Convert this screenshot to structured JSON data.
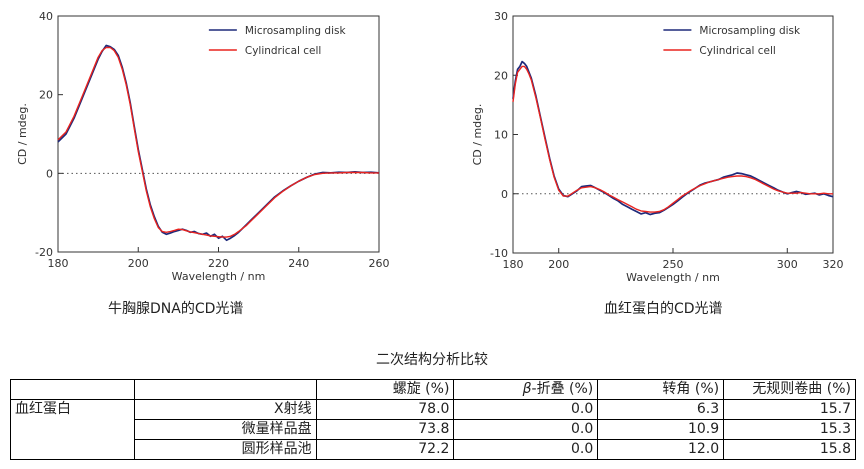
{
  "charts": {
    "dna": {
      "caption": "牛胸腺DNA的CD光谱",
      "legend": [
        "Microsampling disk",
        "Cylindrical cell"
      ]
    },
    "hemoglobin": {
      "caption": "血红蛋白的CD光谱",
      "legend": [
        "Microsampling disk",
        "Cylindrical cell"
      ]
    }
  },
  "colors": {
    "series1": "#1f2a7a",
    "series2": "#e8231f"
  },
  "table": {
    "title": "二次结构分析比较",
    "headers": [
      "",
      "",
      "螺旋 (%)",
      "β-折叠 (%)",
      "转角 (%)",
      "无规则卷曲 (%)"
    ],
    "header_beta_symbol": "β",
    "header_beta_rest": "-折叠 (%)",
    "sample": "血红蛋白",
    "rows": [
      {
        "method": "X射线",
        "values": [
          "78.0",
          "0.0",
          "6.3",
          "15.7"
        ]
      },
      {
        "method": "微量样品盘",
        "values": [
          "73.8",
          "0.0",
          "10.9",
          "15.3"
        ]
      },
      {
        "method": "圆形样品池",
        "values": [
          "72.2",
          "0.0",
          "12.0",
          "15.8"
        ]
      }
    ]
  },
  "chart_data": [
    {
      "type": "line",
      "title": "牛胸腺DNA的CD光谱",
      "xlabel": "Wavelength / nm",
      "ylabel": "CD / mdeg.",
      "xlim": [
        180,
        260
      ],
      "ylim": [
        -20,
        40
      ],
      "xticks": [
        180,
        200,
        220,
        240,
        260
      ],
      "yticks": [
        -20,
        0,
        20,
        40
      ],
      "legend_position": "top-right",
      "zero_line": "dotted",
      "series": [
        {
          "name": "Microsampling disk",
          "x": [
            180,
            182,
            184,
            186,
            188,
            190,
            191,
            192,
            193,
            194,
            195,
            196,
            197,
            198,
            199,
            200,
            201,
            202,
            203,
            204,
            205,
            206,
            207,
            208,
            209,
            210,
            211,
            212,
            213,
            214,
            215,
            216,
            217,
            218,
            219,
            220,
            221,
            222,
            223,
            224,
            225,
            226,
            227,
            228,
            230,
            232,
            234,
            236,
            238,
            240,
            242,
            244,
            246,
            248,
            250,
            252,
            254,
            256,
            258,
            260
          ],
          "y": [
            8,
            10,
            14,
            19,
            24,
            29,
            31,
            32.5,
            32.2,
            31.5,
            30,
            27,
            23,
            18,
            12,
            6,
            1,
            -4,
            -8,
            -11,
            -13.5,
            -15,
            -15.5,
            -15.2,
            -14.8,
            -14.5,
            -14.2,
            -14.5,
            -15,
            -14.8,
            -15.3,
            -15.5,
            -15.2,
            -16,
            -15.5,
            -16.5,
            -16,
            -17,
            -16.5,
            -15.8,
            -15,
            -14,
            -13,
            -12,
            -10,
            -8,
            -6,
            -4.5,
            -3.2,
            -2,
            -1,
            -0.2,
            0.2,
            0.1,
            0.3,
            0.2,
            0.4,
            0.2,
            0.3,
            0.1
          ]
        },
        {
          "name": "Cylindrical cell",
          "x": [
            180,
            182,
            184,
            186,
            188,
            190,
            191,
            192,
            193,
            194,
            195,
            196,
            197,
            198,
            199,
            200,
            201,
            202,
            203,
            204,
            205,
            206,
            207,
            208,
            209,
            210,
            211,
            212,
            213,
            214,
            215,
            216,
            217,
            218,
            219,
            220,
            221,
            222,
            223,
            224,
            225,
            226,
            227,
            228,
            230,
            232,
            234,
            236,
            238,
            240,
            242,
            244,
            246,
            248,
            250,
            252,
            254,
            256,
            258,
            260
          ],
          "y": [
            8.5,
            10.5,
            14.5,
            19.5,
            24.5,
            29.5,
            31.2,
            32,
            32,
            31.2,
            29.5,
            26.5,
            22.5,
            17.5,
            11.5,
            5.5,
            0.5,
            -4.5,
            -8.5,
            -11.5,
            -13.8,
            -14.8,
            -15,
            -14.8,
            -14.5,
            -14.2,
            -14.3,
            -14.6,
            -14.9,
            -15.1,
            -15.3,
            -15.5,
            -15.7,
            -15.9,
            -16,
            -16.1,
            -16.2,
            -16.2,
            -16,
            -15.5,
            -14.8,
            -14,
            -13.2,
            -12.2,
            -10.2,
            -8.2,
            -6.2,
            -4.6,
            -3.2,
            -2,
            -1,
            -0.3,
            0,
            0.1,
            0.1,
            0.2,
            0.2,
            0.2,
            0.1,
            0.1
          ]
        }
      ]
    },
    {
      "type": "line",
      "title": "血红蛋白的CD光谱",
      "xlabel": "Wavelength / nm",
      "ylabel": "CD / mdeg.",
      "xlim": [
        180,
        320
      ],
      "ylim": [
        -10,
        30
      ],
      "xticks": [
        180,
        200,
        250,
        300,
        320
      ],
      "yticks": [
        -10,
        0,
        10,
        20,
        30
      ],
      "legend_position": "top-right",
      "zero_line": "dotted",
      "series": [
        {
          "name": "Microsampling disk",
          "x": [
            180,
            181,
            182,
            183,
            184,
            185,
            186,
            187,
            188,
            190,
            192,
            194,
            196,
            198,
            200,
            202,
            204,
            206,
            208,
            210,
            212,
            214,
            216,
            218,
            220,
            222,
            224,
            226,
            228,
            230,
            232,
            234,
            236,
            238,
            240,
            242,
            244,
            246,
            248,
            250,
            252,
            254,
            256,
            258,
            260,
            262,
            264,
            266,
            268,
            270,
            272,
            274,
            276,
            278,
            280,
            282,
            284,
            286,
            288,
            290,
            292,
            294,
            296,
            298,
            300,
            302,
            304,
            306,
            308,
            310,
            312,
            314,
            316,
            318,
            320
          ],
          "y": [
            16,
            19,
            21,
            21.5,
            22.3,
            22,
            21.5,
            20.5,
            19.5,
            16.5,
            13,
            9.5,
            6,
            3,
            0.8,
            -0.3,
            -0.5,
            0,
            0.5,
            1.2,
            1.3,
            1.4,
            1,
            0.6,
            0.2,
            -0.3,
            -0.8,
            -1.2,
            -1.8,
            -2.2,
            -2.6,
            -3,
            -3.4,
            -3.2,
            -3.5,
            -3.3,
            -3.2,
            -2.8,
            -2.3,
            -1.8,
            -1.2,
            -0.6,
            0,
            0.5,
            1,
            1.5,
            1.8,
            2,
            2.2,
            2.4,
            2.8,
            3,
            3.2,
            3.5,
            3.4,
            3.2,
            3,
            2.6,
            2.2,
            1.8,
            1.4,
            1,
            0.6,
            0.3,
            0,
            0.2,
            0.4,
            0.2,
            -0.1,
            0,
            0.1,
            -0.2,
            0,
            -0.3,
            -0.5
          ]
        },
        {
          "name": "Cylindrical cell",
          "x": [
            180,
            181,
            182,
            183,
            184,
            185,
            186,
            187,
            188,
            190,
            192,
            194,
            196,
            198,
            200,
            202,
            204,
            206,
            208,
            210,
            212,
            214,
            216,
            218,
            220,
            222,
            224,
            226,
            228,
            230,
            232,
            234,
            236,
            238,
            240,
            242,
            244,
            246,
            248,
            250,
            252,
            254,
            256,
            258,
            260,
            262,
            264,
            266,
            268,
            270,
            272,
            274,
            276,
            278,
            280,
            282,
            284,
            286,
            288,
            290,
            292,
            294,
            296,
            298,
            300,
            302,
            304,
            306,
            308,
            310,
            312,
            314,
            316,
            318,
            320
          ],
          "y": [
            15.5,
            18.5,
            20.5,
            21,
            21.5,
            21.5,
            21,
            20.2,
            19.2,
            16.2,
            12.8,
            9.2,
            5.8,
            2.8,
            0.6,
            -0.4,
            -0.4,
            0.1,
            0.6,
            1,
            1.1,
            1.2,
            1,
            0.7,
            0.3,
            -0.2,
            -0.6,
            -1,
            -1.4,
            -1.8,
            -2.2,
            -2.6,
            -2.9,
            -3,
            -3.1,
            -3.1,
            -3,
            -2.7,
            -2.2,
            -1.6,
            -1,
            -0.4,
            0.1,
            0.6,
            1,
            1.4,
            1.7,
            2,
            2.2,
            2.4,
            2.6,
            2.8,
            2.9,
            3,
            3,
            2.9,
            2.7,
            2.4,
            2,
            1.6,
            1.2,
            0.8,
            0.5,
            0.3,
            0.1,
            0.1,
            0.1,
            0.2,
            0.1,
            0,
            0,
            0,
            0.1,
            0,
            0
          ]
        }
      ]
    }
  ]
}
